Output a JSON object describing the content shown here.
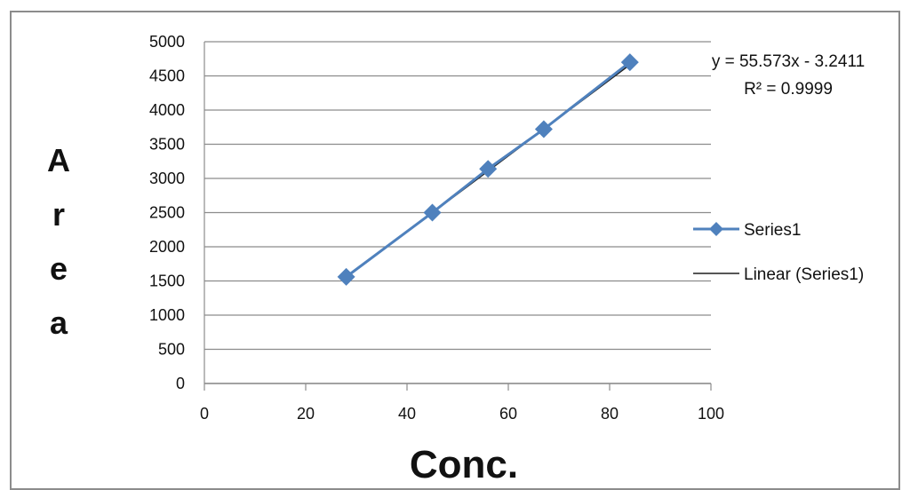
{
  "chart_data": {
    "type": "scatter",
    "title": "",
    "xlabel": "Conc.",
    "ylabel": "Area",
    "xlim": [
      0,
      100
    ],
    "ylim": [
      0,
      5000
    ],
    "x_ticks": [
      0,
      20,
      40,
      60,
      80,
      100
    ],
    "y_ticks": [
      0,
      500,
      1000,
      1500,
      2000,
      2500,
      3000,
      3500,
      4000,
      4500,
      5000
    ],
    "grid": "horizontal",
    "legend_position": "right",
    "series": [
      {
        "name": "Series1",
        "marker": "diamond",
        "color": "#4f81bd",
        "x": [
          28,
          45,
          56,
          67,
          84
        ],
        "y": [
          1560,
          2500,
          3140,
          3720,
          4700
        ]
      }
    ],
    "trendline": {
      "name": "Linear (Series1)",
      "type": "linear",
      "slope": 55.573,
      "intercept": -3.2411,
      "color": "#1f1f1f",
      "equation_label": "y = 55.573x - 3.2411",
      "r2_label": "R² = 0.9999"
    }
  }
}
